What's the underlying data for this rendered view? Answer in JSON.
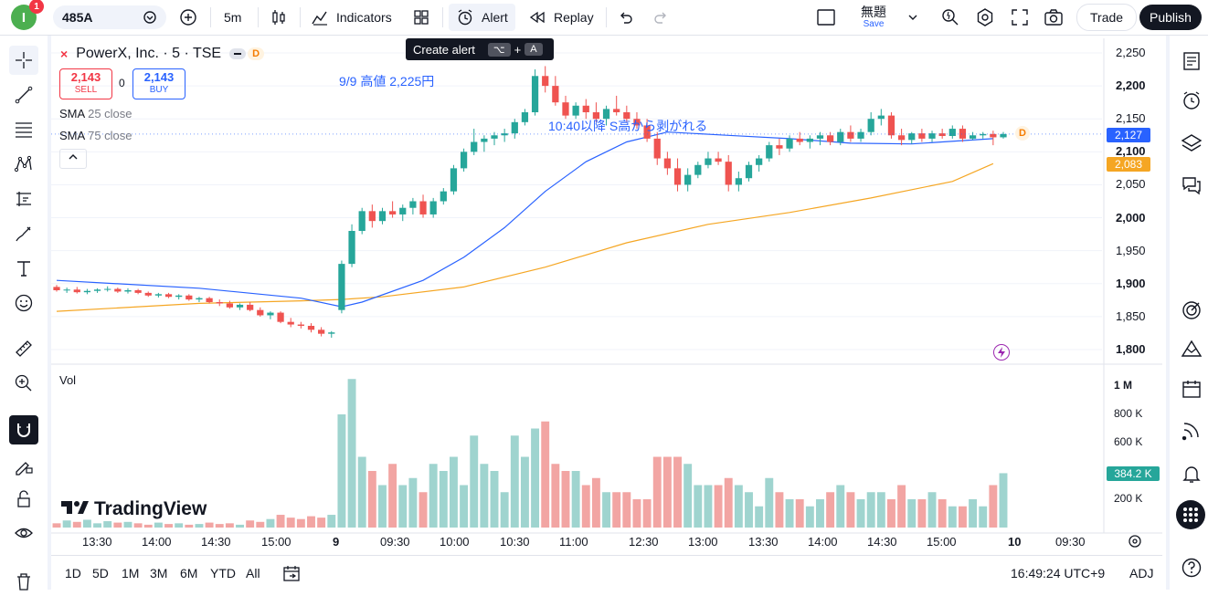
{
  "toolbar": {
    "avatar_letter": "I",
    "notification_count": "1",
    "symbol": "485A",
    "interval": "5m",
    "indicators_label": "Indicators",
    "alert_label": "Alert",
    "replay_label": "Replay",
    "layout_name": "無題",
    "save_label": "Save",
    "trade_label": "Trade",
    "publish_label": "Publish"
  },
  "tooltip": {
    "text": "Create alert",
    "key1": "⌥",
    "plus": "+",
    "key2": "A"
  },
  "legend": {
    "title": "PowerX, Inc. · 5 · TSE",
    "badge": "D",
    "sell_price": "2,143",
    "sell_label": "SELL",
    "spread": "0",
    "buy_price": "2,143",
    "buy_label": "BUY",
    "sma25_name": "SMA",
    "sma25_value": "25 close",
    "sma75_name": "SMA",
    "sma75_value": "75 close",
    "vol_label": "Vol"
  },
  "annotations": {
    "note1": "9/9 高値 2,225円",
    "note2": "10:40以降 S高から剥がれる"
  },
  "price_axis": {
    "labels": [
      "2,250",
      "2,200",
      "2,150",
      "2,100",
      "2,050",
      "2,000",
      "1,950",
      "1,900",
      "1,850",
      "1,800"
    ],
    "last_price": "2,127",
    "sma_price": "2,083",
    "last_badge": "D"
  },
  "volume_axis": {
    "labels": [
      "1 M",
      "800 K",
      "600 K",
      "400 K",
      "200 K"
    ],
    "last_volume": "384.2 K"
  },
  "time_axis": {
    "labels": [
      "13:30",
      "14:00",
      "14:30",
      "15:00",
      "9",
      "09:30",
      "10:00",
      "10:30",
      "11:00",
      "12:30",
      "13:00",
      "13:30",
      "14:00",
      "14:30",
      "15:00",
      "10",
      "09:30"
    ]
  },
  "bottom": {
    "ranges": [
      "1D",
      "5D",
      "1M",
      "3M",
      "6M",
      "YTD",
      "All"
    ],
    "clock": "16:49:24 UTC+9",
    "adj": "ADJ"
  },
  "watermark": "TradingView",
  "colors": {
    "up": "#26a69a",
    "down": "#ef5350",
    "vol_up": "#9fd4cf",
    "vol_down": "#f2a5a3",
    "sma25": "#2962ff",
    "sma75": "#f5a623",
    "last_tag": "#2962ff",
    "sma_tag": "#f5a623"
  },
  "chart_data": {
    "type": "candlestick",
    "title": "PowerX, Inc. · 5 · TSE",
    "ylim": [
      1780,
      2265
    ],
    "volume_ylim": [
      0,
      1100000
    ],
    "candles": [
      [
        1895,
        1898,
        1888,
        1890
      ],
      [
        1890,
        1894,
        1886,
        1891
      ],
      [
        1891,
        1895,
        1885,
        1887
      ],
      [
        1887,
        1892,
        1884,
        1889
      ],
      [
        1889,
        1893,
        1886,
        1891
      ],
      [
        1891,
        1896,
        1888,
        1892
      ],
      [
        1892,
        1894,
        1886,
        1888
      ],
      [
        1888,
        1893,
        1885,
        1890
      ],
      [
        1890,
        1892,
        1884,
        1886
      ],
      [
        1886,
        1888,
        1880,
        1882
      ],
      [
        1882,
        1886,
        1879,
        1884
      ],
      [
        1884,
        1886,
        1878,
        1880
      ],
      [
        1880,
        1884,
        1876,
        1882
      ],
      [
        1882,
        1884,
        1874,
        1876
      ],
      [
        1876,
        1880,
        1872,
        1878
      ],
      [
        1878,
        1880,
        1870,
        1872
      ],
      [
        1872,
        1876,
        1866,
        1870
      ],
      [
        1870,
        1874,
        1862,
        1864
      ],
      [
        1864,
        1870,
        1860,
        1868
      ],
      [
        1868,
        1872,
        1858,
        1860
      ],
      [
        1860,
        1864,
        1850,
        1852
      ],
      [
        1852,
        1858,
        1846,
        1856
      ],
      [
        1856,
        1858,
        1840,
        1842
      ],
      [
        1842,
        1848,
        1834,
        1838
      ],
      [
        1838,
        1842,
        1832,
        1836
      ],
      [
        1836,
        1840,
        1826,
        1830
      ],
      [
        1830,
        1834,
        1820,
        1824
      ],
      [
        1824,
        1828,
        1818,
        1826
      ],
      [
        1860,
        1935,
        1855,
        1930
      ],
      [
        1930,
        1990,
        1925,
        1980
      ],
      [
        1980,
        2015,
        1975,
        2010
      ],
      [
        2010,
        2020,
        1985,
        1995
      ],
      [
        1995,
        2015,
        1990,
        2010
      ],
      [
        2010,
        2025,
        2000,
        2005
      ],
      [
        2005,
        2020,
        1995,
        2015
      ],
      [
        2015,
        2030,
        2005,
        2025
      ],
      [
        2025,
        2035,
        2000,
        2005
      ],
      [
        2005,
        2030,
        2000,
        2025
      ],
      [
        2025,
        2045,
        2020,
        2040
      ],
      [
        2040,
        2080,
        2035,
        2075
      ],
      [
        2075,
        2105,
        2070,
        2100
      ],
      [
        2100,
        2135,
        2095,
        2115
      ],
      [
        2115,
        2125,
        2100,
        2120
      ],
      [
        2120,
        2130,
        2110,
        2125
      ],
      [
        2125,
        2135,
        2115,
        2128
      ],
      [
        2128,
        2150,
        2120,
        2145
      ],
      [
        2145,
        2165,
        2140,
        2160
      ],
      [
        2160,
        2225,
        2155,
        2215
      ],
      [
        2215,
        2230,
        2190,
        2200
      ],
      [
        2200,
        2215,
        2170,
        2175
      ],
      [
        2175,
        2185,
        2150,
        2155
      ],
      [
        2155,
        2175,
        2150,
        2170
      ],
      [
        2170,
        2180,
        2150,
        2160
      ],
      [
        2160,
        2175,
        2145,
        2150
      ],
      [
        2150,
        2170,
        2140,
        2165
      ],
      [
        2165,
        2185,
        2155,
        2160
      ],
      [
        2160,
        2170,
        2145,
        2150
      ],
      [
        2150,
        2160,
        2135,
        2140
      ],
      [
        2140,
        2150,
        2115,
        2120
      ],
      [
        2120,
        2130,
        2080,
        2090
      ],
      [
        2090,
        2100,
        2065,
        2075
      ],
      [
        2075,
        2090,
        2040,
        2050
      ],
      [
        2050,
        2075,
        2040,
        2065
      ],
      [
        2065,
        2085,
        2060,
        2080
      ],
      [
        2080,
        2100,
        2075,
        2090
      ],
      [
        2090,
        2100,
        2080,
        2085
      ],
      [
        2085,
        2095,
        2040,
        2050
      ],
      [
        2050,
        2070,
        2040,
        2060
      ],
      [
        2060,
        2085,
        2055,
        2080
      ],
      [
        2080,
        2095,
        2070,
        2090
      ],
      [
        2090,
        2115,
        2085,
        2110
      ],
      [
        2110,
        2120,
        2095,
        2105
      ],
      [
        2105,
        2125,
        2100,
        2120
      ],
      [
        2120,
        2130,
        2110,
        2115
      ],
      [
        2115,
        2125,
        2105,
        2120
      ],
      [
        2120,
        2130,
        2110,
        2125
      ],
      [
        2125,
        2130,
        2110,
        2115
      ],
      [
        2115,
        2135,
        2110,
        2130
      ],
      [
        2130,
        2140,
        2115,
        2120
      ],
      [
        2120,
        2135,
        2115,
        2130
      ],
      [
        2130,
        2160,
        2125,
        2150
      ],
      [
        2150,
        2165,
        2140,
        2155
      ],
      [
        2155,
        2160,
        2120,
        2125
      ],
      [
        2125,
        2135,
        2110,
        2118
      ],
      [
        2118,
        2130,
        2112,
        2128
      ],
      [
        2128,
        2135,
        2115,
        2120
      ],
      [
        2120,
        2132,
        2115,
        2128
      ],
      [
        2128,
        2135,
        2120,
        2124
      ],
      [
        2124,
        2140,
        2120,
        2135
      ],
      [
        2135,
        2140,
        2115,
        2120
      ],
      [
        2120,
        2130,
        2118,
        2125
      ],
      [
        2125,
        2130,
        2120,
        2127
      ],
      [
        2127,
        2132,
        2110,
        2122
      ],
      [
        2122,
        2130,
        2120,
        2127
      ]
    ],
    "volume": [
      30000,
      50000,
      40000,
      55000,
      30000,
      45000,
      35000,
      40000,
      30000,
      20000,
      35000,
      25000,
      30000,
      20000,
      25000,
      35000,
      25000,
      30000,
      20000,
      50000,
      40000,
      60000,
      90000,
      70000,
      60000,
      80000,
      70000,
      90000,
      800000,
      1050000,
      500000,
      400000,
      300000,
      450000,
      300000,
      350000,
      250000,
      450000,
      400000,
      500000,
      300000,
      650000,
      450000,
      400000,
      250000,
      650000,
      500000,
      700000,
      750000,
      450000,
      400000,
      400000,
      300000,
      350000,
      250000,
      250000,
      250000,
      200000,
      200000,
      500000,
      500000,
      500000,
      450000,
      300000,
      300000,
      300000,
      350000,
      300000,
      250000,
      150000,
      350000,
      250000,
      200000,
      200000,
      150000,
      200000,
      250000,
      300000,
      250000,
      200000,
      250000,
      250000,
      200000,
      300000,
      200000,
      200000,
      250000,
      200000,
      150000,
      150000,
      200000,
      150000,
      300000,
      384200
    ],
    "sma25_close_approx": [
      [
        0,
        1905
      ],
      [
        14,
        1893
      ],
      [
        24,
        1878
      ],
      [
        28,
        1865
      ],
      [
        30,
        1872
      ],
      [
        36,
        1905
      ],
      [
        40,
        1940
      ],
      [
        44,
        1985
      ],
      [
        48,
        2040
      ],
      [
        52,
        2085
      ],
      [
        56,
        2115
      ],
      [
        60,
        2130
      ],
      [
        66,
        2125
      ],
      [
        72,
        2120
      ],
      [
        78,
        2113
      ],
      [
        84,
        2112
      ],
      [
        92,
        2120
      ]
    ],
    "sma75_close_approx": [
      [
        0,
        1858
      ],
      [
        14,
        1870
      ],
      [
        24,
        1874
      ],
      [
        28,
        1876
      ],
      [
        32,
        1880
      ],
      [
        40,
        1895
      ],
      [
        48,
        1925
      ],
      [
        56,
        1962
      ],
      [
        64,
        1990
      ],
      [
        72,
        2008
      ],
      [
        80,
        2030
      ],
      [
        88,
        2055
      ],
      [
        92,
        2082
      ]
    ]
  }
}
